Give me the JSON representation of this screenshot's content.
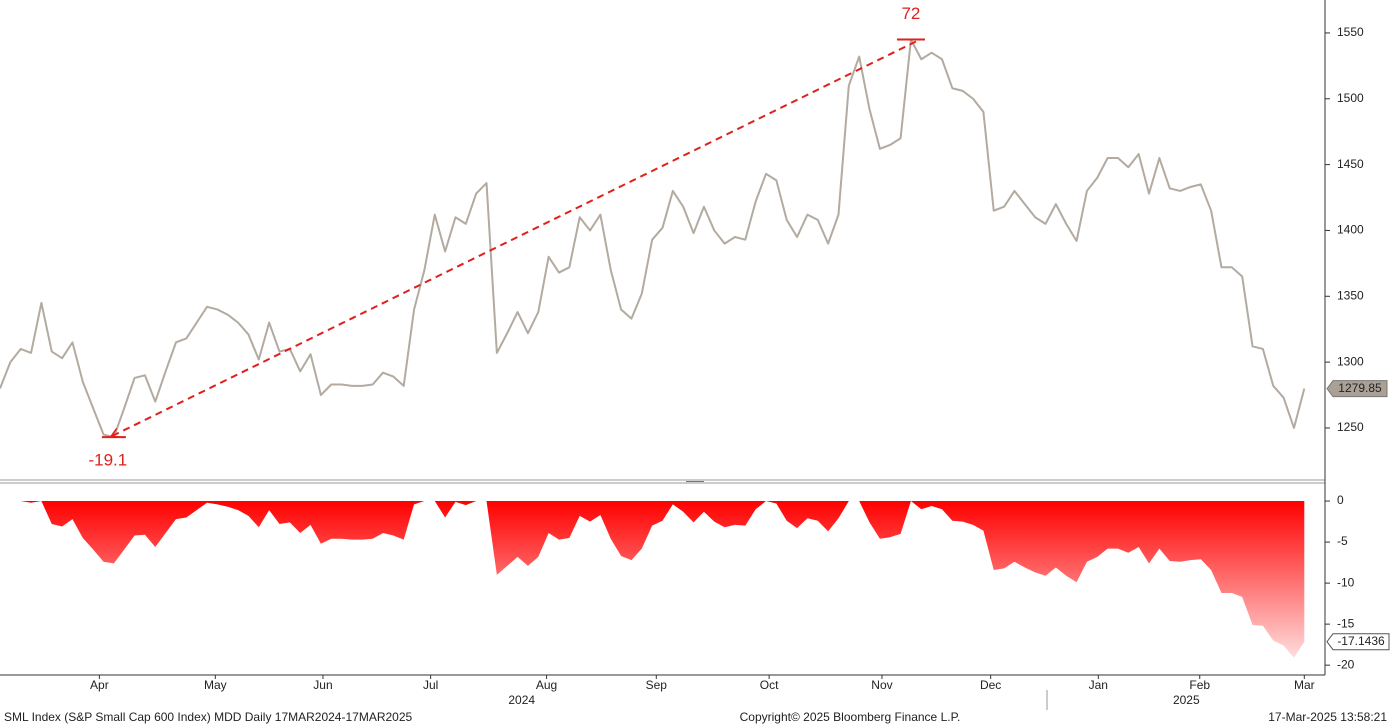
{
  "chart_data": [
    {
      "type": "line",
      "color": "#b3aaa0",
      "ylim": [
        1212,
        1575
      ],
      "yticks": [
        1250,
        1300,
        1350,
        1400,
        1450,
        1500,
        1550
      ],
      "xlim": [
        0,
        128
      ],
      "values": [
        1280,
        1300,
        1310,
        1307,
        1345,
        1308,
        1303,
        1315,
        1285,
        1265,
        1245,
        1243,
        1265,
        1288,
        1290,
        1270,
        1293,
        1315,
        1318,
        1330,
        1342,
        1340,
        1336,
        1330,
        1321,
        1302,
        1330,
        1308,
        1310,
        1293,
        1306,
        1275,
        1283,
        1283,
        1282,
        1282,
        1283,
        1292,
        1289,
        1282,
        1340,
        1370,
        1412,
        1384,
        1410,
        1405,
        1428,
        1436,
        1307,
        1322,
        1338,
        1322,
        1338,
        1380,
        1368,
        1372,
        1410,
        1400,
        1412,
        1370,
        1340,
        1333,
        1352,
        1393,
        1402,
        1430,
        1418,
        1398,
        1418,
        1400,
        1390,
        1395,
        1393,
        1422,
        1443,
        1438,
        1408,
        1395,
        1412,
        1408,
        1390,
        1412,
        1510,
        1532,
        1492,
        1462,
        1465,
        1470,
        1545,
        1530,
        1535,
        1530,
        1508,
        1506,
        1500,
        1490,
        1415,
        1418,
        1430,
        1420,
        1410,
        1405,
        1420,
        1405,
        1392,
        1430,
        1440,
        1455,
        1455,
        1448,
        1458,
        1428,
        1455,
        1432,
        1430,
        1433,
        1435,
        1415,
        1372,
        1372,
        1365,
        1312,
        1310,
        1282,
        1273,
        1250,
        1279.85
      ],
      "annotations": [
        {
          "label": "72",
          "color": "#e0201b"
        },
        {
          "label": "-19.1",
          "color": "#e0201b"
        }
      ]
    },
    {
      "type": "area",
      "color": "#ff0000",
      "ylim": [
        -21.2,
        2.2
      ],
      "yticks": [
        0,
        -5,
        -10,
        -15,
        -20
      ],
      "xlim": [
        0,
        128
      ],
      "values": [
        0,
        0,
        0,
        -0.2,
        0,
        -2.8,
        -3.1,
        -2.2,
        -4.5,
        -5.9,
        -7.4,
        -7.6,
        -5.9,
        -4.2,
        -4.1,
        -5.6,
        -3.9,
        -2.2,
        -2.0,
        -1.1,
        -0.2,
        -0.4,
        -0.7,
        -1.1,
        -1.8,
        -3.2,
        -1.1,
        -2.8,
        -2.6,
        -3.9,
        -2.9,
        -5.2,
        -4.6,
        -4.6,
        -4.7,
        -4.7,
        -4.6,
        -3.9,
        -4.2,
        -4.7,
        -0.4,
        0,
        0,
        -2.0,
        -0.1,
        -0.5,
        0,
        0,
        -9.0,
        -7.9,
        -6.8,
        -7.9,
        -6.8,
        -3.9,
        -4.7,
        -4.5,
        -1.8,
        -2.5,
        -1.7,
        -4.6,
        -6.7,
        -7.2,
        -5.8,
        -3.0,
        -2.4,
        -0.4,
        -1.3,
        -2.6,
        -1.3,
        -2.5,
        -3.2,
        -2.9,
        -3.0,
        -1.0,
        0,
        -0.3,
        -2.4,
        -3.3,
        -2.1,
        -2.4,
        -3.7,
        -2.1,
        0,
        0,
        -2.6,
        -4.6,
        -4.4,
        -4.0,
        0,
        -1.0,
        -0.6,
        -1.0,
        -2.4,
        -2.5,
        -2.9,
        -3.6,
        -8.4,
        -8.2,
        -7.4,
        -8.1,
        -8.7,
        -9.1,
        -8.1,
        -9.1,
        -9.9,
        -7.4,
        -6.8,
        -5.8,
        -5.8,
        -6.3,
        -5.6,
        -7.6,
        -5.8,
        -7.3,
        -7.4,
        -7.2,
        -7.1,
        -8.4,
        -11.2,
        -11.2,
        -11.7,
        -15.1,
        -15.2,
        -17.0,
        -17.6,
        -19.1,
        -17.1436
      ],
      "xticks": [
        {
          "value": 9.6,
          "label": "Apr"
        },
        {
          "value": 20.8,
          "label": "May"
        },
        {
          "value": 31.2,
          "label": "Jun"
        },
        {
          "value": 41.6,
          "label": "Jul"
        },
        {
          "value": 52.8,
          "label": "Aug"
        },
        {
          "value": 63.4,
          "label": "Sep"
        },
        {
          "value": 74.3,
          "label": "Oct"
        },
        {
          "value": 85.2,
          "label": "Nov"
        },
        {
          "value": 95.7,
          "label": "Dec"
        },
        {
          "value": 106.1,
          "label": "Jan"
        },
        {
          "value": 115.9,
          "label": "Feb"
        },
        {
          "value": 126,
          "label": "Mar"
        }
      ],
      "year_ticks": [
        {
          "value": 50.4,
          "label": "2024"
        },
        {
          "value": 114.6,
          "label": "2025"
        }
      ]
    }
  ],
  "footer": {
    "left": "SML Index (S&P Small Cap 600 Index) MDD  Daily 17MAR2024-17MAR2025",
    "center": "Copyright© 2025 Bloomberg Finance L.P.",
    "right": "17-Mar-2025 13:58:21"
  }
}
